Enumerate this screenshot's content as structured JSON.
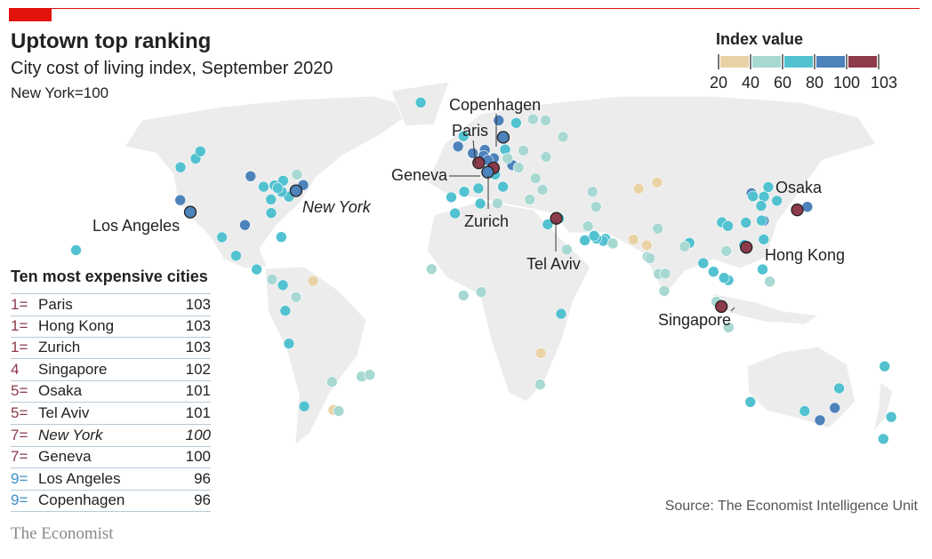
{
  "header": {
    "title": "Uptown top ranking",
    "subtitle": "City cost of living index, September 2020",
    "note": "New York=100"
  },
  "legend": {
    "title": "Index value",
    "ticks": [
      "20",
      "40",
      "60",
      "80",
      "100",
      "103"
    ],
    "bands": [
      {
        "min": 20,
        "max": 40,
        "color": "#e9d3a6"
      },
      {
        "min": 40,
        "max": 60,
        "color": "#a8d8d2"
      },
      {
        "min": 60,
        "max": 80,
        "color": "#52c1d0"
      },
      {
        "min": 80,
        "max": 100,
        "color": "#4d82bb"
      },
      {
        "min": 100,
        "max": 103,
        "color": "#8d3a4b"
      }
    ]
  },
  "table": {
    "title": "Ten most expensive cities",
    "rows": [
      {
        "rank": "1=",
        "city": "Paris",
        "value": "103",
        "color": "#8d3a4b"
      },
      {
        "rank": "1=",
        "city": "Hong Kong",
        "value": "103",
        "color": "#8d3a4b"
      },
      {
        "rank": "1=",
        "city": "Zurich",
        "value": "103",
        "color": "#8d3a4b"
      },
      {
        "rank": "4",
        "city": "Singapore",
        "value": "102",
        "color": "#8d3a4b"
      },
      {
        "rank": "5=",
        "city": "Osaka",
        "value": "101",
        "color": "#8d3a4b"
      },
      {
        "rank": "5=",
        "city": "Tel Aviv",
        "value": "101",
        "color": "#8d3a4b"
      },
      {
        "rank": "7=",
        "city": "New York",
        "value": "100",
        "color": "#8d3a4b",
        "italic": true
      },
      {
        "rank": "7=",
        "city": "Geneva",
        "value": "100",
        "color": "#8d3a4b"
      },
      {
        "rank": "9=",
        "city": "Los Angeles",
        "value": "96",
        "color": "#3b8fc4"
      },
      {
        "rank": "9=",
        "city": "Copenhagen",
        "value": "96",
        "color": "#3b8fc4"
      }
    ]
  },
  "source": "Source: The Economist Intelligence Unit",
  "brand": "The Economist",
  "chart_data": {
    "type": "scatter",
    "title": "City cost of living index, September 2020",
    "subtitle": "New York=100",
    "labels": {
      "copenhagen": "Copenhagen",
      "paris": "Paris",
      "geneva": "Geneva",
      "zurich": "Zurich",
      "los_angeles": "Los Angeles",
      "new_york": "New York",
      "tel_aviv": "Tel Aviv",
      "osaka": "Osaka",
      "hong_kong": "Hong Kong",
      "singapore": "Singapore"
    },
    "cities": [
      {
        "lon": -74,
        "lat": 40.7,
        "v": 100,
        "hl": 1
      },
      {
        "lon": -118.2,
        "lat": 34,
        "v": 96,
        "hl": 1
      },
      {
        "lon": -122.4,
        "lat": 37.8,
        "v": 88
      },
      {
        "lon": -122.3,
        "lat": 47.6,
        "v": 70
      },
      {
        "lon": -116,
        "lat": 50,
        "v": 70
      },
      {
        "lon": -114,
        "lat": 52,
        "v": 68
      },
      {
        "lon": -87.6,
        "lat": 41.9,
        "v": 72
      },
      {
        "lon": -79.4,
        "lat": 43.7,
        "v": 70
      },
      {
        "lon": -73.6,
        "lat": 45.5,
        "v": 55
      },
      {
        "lon": -71,
        "lat": 42.4,
        "v": 88
      },
      {
        "lon": -77,
        "lat": 38.9,
        "v": 70
      },
      {
        "lon": -84.4,
        "lat": 33.7,
        "v": 72
      },
      {
        "lon": -95.4,
        "lat": 29.8,
        "v": 85
      },
      {
        "lon": -93,
        "lat": 45,
        "v": 85
      },
      {
        "lon": -83,
        "lat": 42.3,
        "v": 68
      },
      {
        "lon": -80,
        "lat": 40.4,
        "v": 70
      },
      {
        "lon": -81.7,
        "lat": 41.5,
        "v": 70
      },
      {
        "lon": -84.5,
        "lat": 38,
        "v": 72
      },
      {
        "lon": -80.2,
        "lat": 25.8,
        "v": 72
      },
      {
        "lon": -166,
        "lat": 21.3,
        "v": 72
      },
      {
        "lon": -99.1,
        "lat": 19.4,
        "v": 70
      },
      {
        "lon": -105,
        "lat": 25.7,
        "v": 70
      },
      {
        "lon": -90.5,
        "lat": 14.6,
        "v": 70
      },
      {
        "lon": -79.5,
        "lat": 9,
        "v": 70
      },
      {
        "lon": -84,
        "lat": 11,
        "v": 55
      },
      {
        "lon": -66.9,
        "lat": 10.5,
        "v": 35
      },
      {
        "lon": -74,
        "lat": 4.7,
        "v": 55
      },
      {
        "lon": -78.5,
        "lat": -0.2,
        "v": 68
      },
      {
        "lon": -77,
        "lat": -12,
        "v": 68
      },
      {
        "lon": -70.6,
        "lat": -33.4,
        "v": 68
      },
      {
        "lon": -58.4,
        "lat": -34.6,
        "v": 35
      },
      {
        "lon": -56.2,
        "lat": -34.9,
        "v": 52
      },
      {
        "lon": -46.6,
        "lat": -23.5,
        "v": 52
      },
      {
        "lon": -43.2,
        "lat": -22.9,
        "v": 52
      },
      {
        "lon": -59,
        "lat": -25.3,
        "v": 52
      },
      {
        "lon": 2.35,
        "lat": 48.85,
        "v": 103,
        "hl": 1
      },
      {
        "lon": 8.5,
        "lat": 47.4,
        "v": 103,
        "hl": 1
      },
      {
        "lon": 6.1,
        "lat": 46.2,
        "v": 100,
        "hl": 1
      },
      {
        "lon": 12.6,
        "lat": 55.7,
        "v": 96,
        "hl": 1
      },
      {
        "lon": -0.1,
        "lat": 51.5,
        "v": 85
      },
      {
        "lon": -6.3,
        "lat": 53.3,
        "v": 85
      },
      {
        "lon": 10.7,
        "lat": 59.9,
        "v": 85
      },
      {
        "lon": 18,
        "lat": 59.3,
        "v": 72
      },
      {
        "lon": 25,
        "lat": 60.2,
        "v": 55
      },
      {
        "lon": -21.9,
        "lat": 64.1,
        "v": 70
      },
      {
        "lon": 4.9,
        "lat": 52.4,
        "v": 82
      },
      {
        "lon": 4.4,
        "lat": 50.8,
        "v": 82
      },
      {
        "lon": 8.7,
        "lat": 50.1,
        "v": 85
      },
      {
        "lon": 13.4,
        "lat": 52.5,
        "v": 72
      },
      {
        "lon": 16.4,
        "lat": 48.2,
        "v": 85
      },
      {
        "lon": 9.2,
        "lat": 45.5,
        "v": 70
      },
      {
        "lon": 12.5,
        "lat": 41.9,
        "v": 70
      },
      {
        "lon": -3.7,
        "lat": 40.4,
        "v": 70
      },
      {
        "lon": 2.2,
        "lat": 41.4,
        "v": 70
      },
      {
        "lon": -9.1,
        "lat": 38.7,
        "v": 68
      },
      {
        "lon": 23.7,
        "lat": 38,
        "v": 55
      },
      {
        "lon": 14.4,
        "lat": 50.1,
        "v": 55
      },
      {
        "lon": 21,
        "lat": 52.2,
        "v": 55
      },
      {
        "lon": 19,
        "lat": 47.5,
        "v": 55
      },
      {
        "lon": 26.1,
        "lat": 44.4,
        "v": 50
      },
      {
        "lon": 29,
        "lat": 41,
        "v": 55
      },
      {
        "lon": 37.6,
        "lat": 55.8,
        "v": 55
      },
      {
        "lon": 30.3,
        "lat": 59.9,
        "v": 55
      },
      {
        "lon": 30.5,
        "lat": 50.5,
        "v": 50
      },
      {
        "lon": 6.1,
        "lat": 49.6,
        "v": 85
      },
      {
        "lon": -4,
        "lat": 56,
        "v": 72
      },
      {
        "lon": 76.9,
        "lat": 43.2,
        "v": 35
      },
      {
        "lon": 69.2,
        "lat": 41.3,
        "v": 30
      },
      {
        "lon": 34.8,
        "lat": 32,
        "v": 101,
        "hl": 1
      },
      {
        "lon": -7.6,
        "lat": 33.6,
        "v": 68
      },
      {
        "lon": 3,
        "lat": 36.7,
        "v": 65
      },
      {
        "lon": 10.2,
        "lat": 36.8,
        "v": 50
      },
      {
        "lon": 31.2,
        "lat": 30,
        "v": 68
      },
      {
        "lon": 35.9,
        "lat": 32,
        "v": 68
      },
      {
        "lon": 46.7,
        "lat": 24.7,
        "v": 68
      },
      {
        "lon": 39.2,
        "lat": 21.5,
        "v": 55
      },
      {
        "lon": 55.3,
        "lat": 25.2,
        "v": 68
      },
      {
        "lon": 54.4,
        "lat": 24.5,
        "v": 68
      },
      {
        "lon": 51.5,
        "lat": 25.3,
        "v": 68
      },
      {
        "lon": 50.6,
        "lat": 26.2,
        "v": 68
      },
      {
        "lon": 48,
        "lat": 29.4,
        "v": 55
      },
      {
        "lon": 51.4,
        "lat": 35.7,
        "v": 55
      },
      {
        "lon": 67,
        "lat": 24.9,
        "v": 25
      },
      {
        "lon": 58.4,
        "lat": 23.6,
        "v": 55
      },
      {
        "lon": -17.4,
        "lat": 14.7,
        "v": 55
      },
      {
        "lon": -4,
        "lat": 5.3,
        "v": 55
      },
      {
        "lon": 3.4,
        "lat": 6.5,
        "v": 50
      },
      {
        "lon": 36.8,
        "lat": -1.3,
        "v": 68
      },
      {
        "lon": 28.3,
        "lat": -15.4,
        "v": 30
      },
      {
        "lon": 28,
        "lat": -26.2,
        "v": 50
      },
      {
        "lon": 49.9,
        "lat": 40.4,
        "v": 55
      },
      {
        "lon": 135.5,
        "lat": 34.7,
        "v": 101,
        "hl": 1
      },
      {
        "lon": 139.7,
        "lat": 35.7,
        "v": 90
      },
      {
        "lon": 114.2,
        "lat": 22.3,
        "v": 103,
        "hl": 1
      },
      {
        "lon": 103.8,
        "lat": 1.3,
        "v": 102,
        "hl": 1
      },
      {
        "lon": 127,
        "lat": 37.6,
        "v": 68
      },
      {
        "lon": 116.4,
        "lat": 39.9,
        "v": 85
      },
      {
        "lon": 121.5,
        "lat": 31.2,
        "v": 85
      },
      {
        "lon": 121.6,
        "lat": 38.9,
        "v": 68
      },
      {
        "lon": 117,
        "lat": 39,
        "v": 68
      },
      {
        "lon": 120.4,
        "lat": 36,
        "v": 68
      },
      {
        "lon": 123.4,
        "lat": 41.8,
        "v": 68
      },
      {
        "lon": 114,
        "lat": 22.6,
        "v": 82
      },
      {
        "lon": 113.3,
        "lat": 23.1,
        "v": 70
      },
      {
        "lon": 121.5,
        "lat": 25,
        "v": 68
      },
      {
        "lon": 114,
        "lat": 30.6,
        "v": 68
      },
      {
        "lon": 104,
        "lat": 30.7,
        "v": 68
      },
      {
        "lon": 106.5,
        "lat": 29.5,
        "v": 68
      },
      {
        "lon": 120.6,
        "lat": 31.3,
        "v": 68
      },
      {
        "lon": 121,
        "lat": 14.6,
        "v": 68
      },
      {
        "lon": 100.5,
        "lat": 13.8,
        "v": 68
      },
      {
        "lon": 105.8,
        "lat": 21,
        "v": 55
      },
      {
        "lon": 106.7,
        "lat": 10.8,
        "v": 68
      },
      {
        "lon": 101.7,
        "lat": 3.1,
        "v": 50
      },
      {
        "lon": 106.8,
        "lat": -6.2,
        "v": 55
      },
      {
        "lon": 104.9,
        "lat": 11.6,
        "v": 68
      },
      {
        "lon": 96.2,
        "lat": 16.8,
        "v": 68
      },
      {
        "lon": 90.4,
        "lat": 23.8,
        "v": 68
      },
      {
        "lon": 77.2,
        "lat": 28.6,
        "v": 50
      },
      {
        "lon": 72.9,
        "lat": 19,
        "v": 50
      },
      {
        "lon": 77.6,
        "lat": 13,
        "v": 50
      },
      {
        "lon": 80.3,
        "lat": 13.1,
        "v": 50
      },
      {
        "lon": 88.4,
        "lat": 22.6,
        "v": 50
      },
      {
        "lon": 73.9,
        "lat": 18.5,
        "v": 50
      },
      {
        "lon": 72.6,
        "lat": 23,
        "v": 30
      },
      {
        "lon": 79.9,
        "lat": 6.9,
        "v": 50
      },
      {
        "lon": 124,
        "lat": 10.3,
        "v": 50
      },
      {
        "lon": 151.2,
        "lat": -33.9,
        "v": 85
      },
      {
        "lon": 145,
        "lat": -37.8,
        "v": 85
      },
      {
        "lon": 153,
        "lat": -27.5,
        "v": 68
      },
      {
        "lon": 115.9,
        "lat": -32,
        "v": 68
      },
      {
        "lon": 138.6,
        "lat": -34.9,
        "v": 68
      },
      {
        "lon": 174.8,
        "lat": -36.8,
        "v": 68
      },
      {
        "lon": 171.5,
        "lat": -43.5,
        "v": 68
      },
      {
        "lon": 172,
        "lat": -20,
        "v": 68
      }
    ]
  }
}
